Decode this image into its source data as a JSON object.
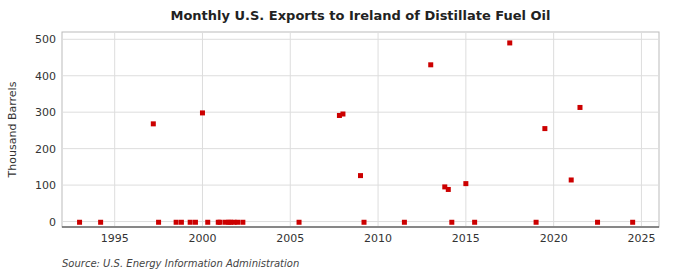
{
  "chart_data": {
    "type": "scatter",
    "title": "Monthly U.S. Exports to Ireland of Distillate Fuel Oil",
    "y_label": "Thousand Barrels",
    "source": "Source: U.S. Energy Information Administration",
    "x": [
      1993.0,
      1994.2,
      1997.2,
      1997.5,
      1998.5,
      1998.8,
      1999.3,
      1999.6,
      2000.0,
      2000.3,
      2000.9,
      2001.0,
      2001.3,
      2001.5,
      2001.6,
      2001.8,
      2002.0,
      2002.3,
      2005.5,
      2007.8,
      2008.0,
      2009.0,
      2009.2,
      2011.5,
      2013.0,
      2013.8,
      2014.0,
      2014.2,
      2015.0,
      2015.5,
      2017.5,
      2019.0,
      2019.5,
      2021.0,
      2021.5,
      2022.5,
      2024.5
    ],
    "values": [
      -2,
      -2,
      268,
      -2,
      -2,
      -2,
      -2,
      -2,
      298,
      -2,
      -2,
      -2,
      -2,
      -2,
      -2,
      -2,
      -2,
      -2,
      -2,
      291,
      295,
      126,
      -2,
      -2,
      430,
      95,
      88,
      -2,
      104,
      -2,
      490,
      -2,
      255,
      114,
      313,
      -2,
      -2
    ],
    "color": "#cc0000",
    "marker": "square",
    "xlim": [
      1992,
      2026
    ],
    "ylim": [
      -15,
      520
    ],
    "xticks": [
      1995,
      2000,
      2005,
      2010,
      2015,
      2020,
      2025
    ],
    "yticks": [
      0,
      100,
      200,
      300,
      400,
      500
    ],
    "grid": true
  }
}
